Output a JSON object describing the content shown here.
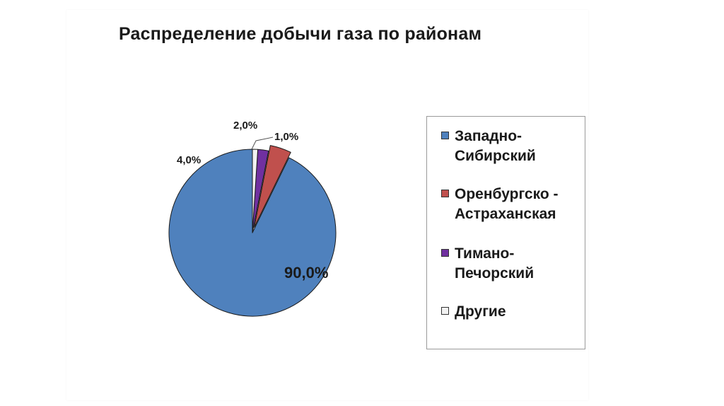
{
  "chart_data": {
    "type": "pie",
    "title": "Распределение добычи газа по районам",
    "series": [
      {
        "values": [
          90.0,
          4.0,
          2.0,
          1.0
        ],
        "data_labels": [
          "90,0%",
          "4,0%",
          "2,0%",
          "1,0%"
        ]
      }
    ],
    "categories": [
      "Западно-Сибирский",
      "Оренбургско - Астраханская",
      "Тимано-Печорский",
      "Другие"
    ],
    "colors": [
      "#4f81bd",
      "#c0504d",
      "#7030a0",
      "#f2f2f2"
    ],
    "exploded": [
      false,
      true,
      false,
      false
    ],
    "legend_position": "right"
  },
  "legend": {
    "items": [
      {
        "label": "Западно-Сибирский",
        "color": "#4f81bd"
      },
      {
        "label": "Оренбургско - Астраханская",
        "color": "#c0504d"
      },
      {
        "label": "Тимано-Печорский",
        "color": "#7030a0"
      },
      {
        "label": "Другие",
        "color": "#f2f2f2"
      }
    ]
  }
}
